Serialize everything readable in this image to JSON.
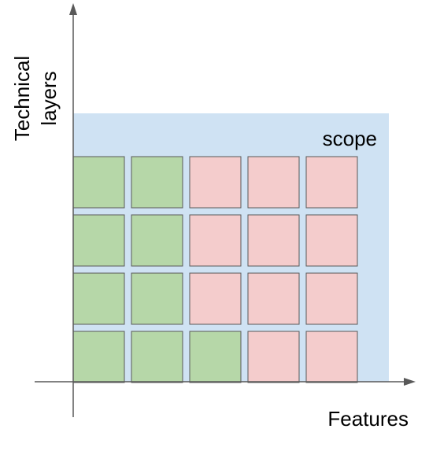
{
  "labels": {
    "y_axis_line1": "Technical",
    "y_axis_line2": "layers",
    "x_axis": "Features",
    "scope": "scope"
  },
  "colors": {
    "scope_fill": "#cfe2f3",
    "done_cell": "#b6d7a8",
    "todo_cell": "#f4cccc",
    "cell_border": "#595959",
    "axis": "#595959"
  },
  "grid": {
    "rows_top_to_bottom": [
      [
        "done",
        "done",
        "todo",
        "todo",
        "todo"
      ],
      [
        "done",
        "done",
        "todo",
        "todo",
        "todo"
      ],
      [
        "done",
        "done",
        "todo",
        "todo",
        "todo"
      ],
      [
        "done",
        "done",
        "done",
        "todo",
        "todo"
      ]
    ]
  }
}
